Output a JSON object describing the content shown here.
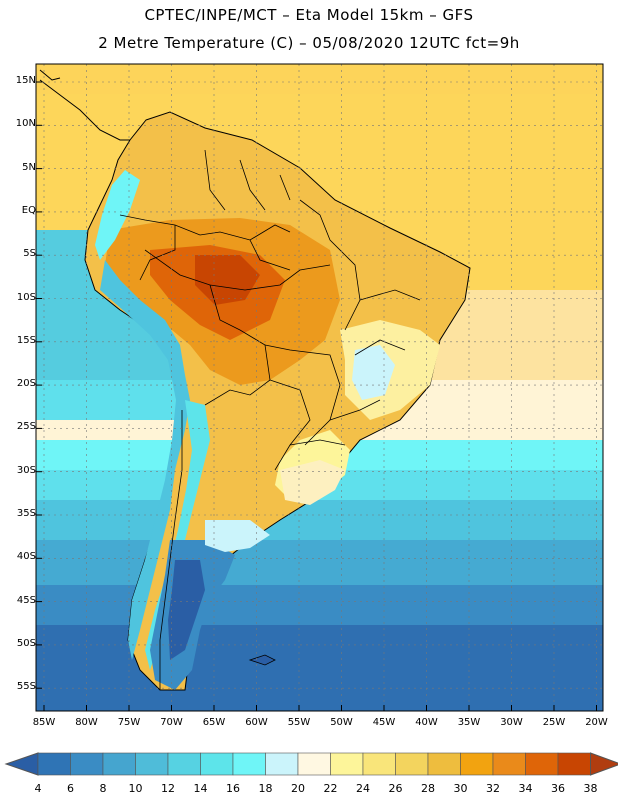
{
  "header": {
    "line1": "CPTEC/INPE/MCT –  Eta Model 15km – GFS",
    "line2": "2 Metre Temperature (C) – 05/08/2020 12UTC fct=9h"
  },
  "map": {
    "lat_labels": [
      "15N",
      "10N",
      "5N",
      "EQ",
      "5S",
      "10S",
      "15S",
      "20S",
      "25S",
      "30S",
      "35S",
      "40S",
      "45S",
      "50S",
      "55S"
    ],
    "lon_labels": [
      "85W",
      "80W",
      "75W",
      "70W",
      "65W",
      "60W",
      "55W",
      "50W",
      "45W",
      "40W",
      "35W",
      "30W",
      "25W",
      "20W"
    ],
    "region": "South America"
  },
  "colorbar": {
    "labels": [
      "4",
      "6",
      "8",
      "10",
      "12",
      "14",
      "16",
      "18",
      "20",
      "22",
      "24",
      "26",
      "28",
      "30",
      "32",
      "34",
      "36",
      "38"
    ],
    "colors": [
      "#2a5ea5",
      "#2f74b5",
      "#3a8cc4",
      "#45a5cf",
      "#4fbcd9",
      "#56d2e2",
      "#5de4ea",
      "#6ff5f7",
      "#cbf4fb",
      "#fff8e2",
      "#fdf59a",
      "#f9e57a",
      "#f3d45e",
      "#eebd3e",
      "#f2a310",
      "#ea8a1a",
      "#df6508",
      "#c84502",
      "#b03d10"
    ]
  }
}
